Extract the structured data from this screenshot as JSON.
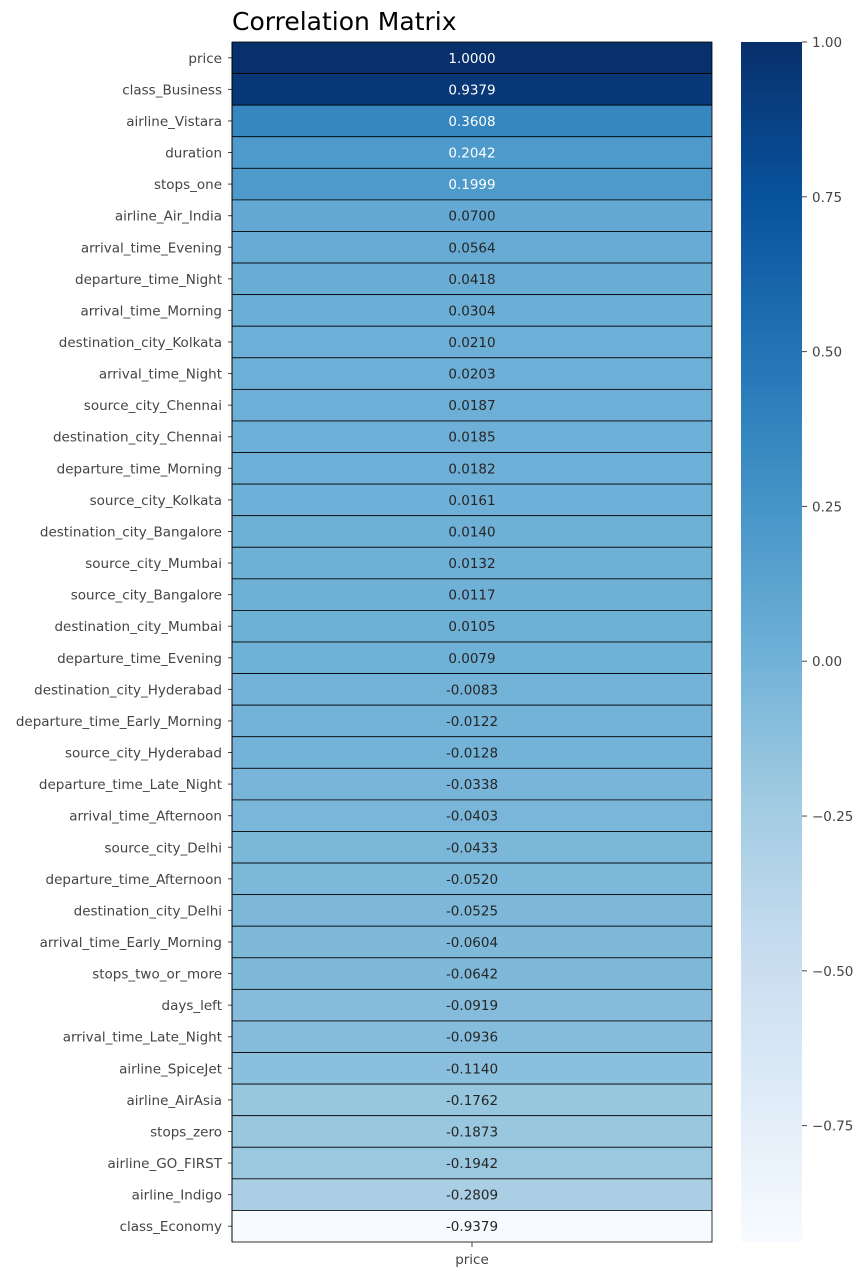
{
  "chart_data": {
    "type": "heatmap",
    "title": "Correlation Matrix",
    "x_categories": [
      "price"
    ],
    "y_categories": [
      "price",
      "class_Business",
      "airline_Vistara",
      "duration",
      "stops_one",
      "airline_Air_India",
      "arrival_time_Evening",
      "departure_time_Night",
      "arrival_time_Morning",
      "destination_city_Kolkata",
      "arrival_time_Night",
      "source_city_Chennai",
      "destination_city_Chennai",
      "departure_time_Morning",
      "source_city_Kolkata",
      "destination_city_Bangalore",
      "source_city_Mumbai",
      "source_city_Bangalore",
      "destination_city_Mumbai",
      "departure_time_Evening",
      "destination_city_Hyderabad",
      "departure_time_Early_Morning",
      "source_city_Hyderabad",
      "departure_time_Late_Night",
      "arrival_time_Afternoon",
      "source_city_Delhi",
      "departure_time_Afternoon",
      "destination_city_Delhi",
      "arrival_time_Early_Morning",
      "stops_two_or_more",
      "days_left",
      "arrival_time_Late_Night",
      "airline_SpiceJet",
      "airline_AirAsia",
      "stops_zero",
      "airline_GO_FIRST",
      "airline_Indigo",
      "class_Economy"
    ],
    "values": [
      1.0,
      0.9379,
      0.3608,
      0.2042,
      0.1999,
      0.07,
      0.0564,
      0.0418,
      0.0304,
      0.021,
      0.0203,
      0.0187,
      0.0185,
      0.0182,
      0.0161,
      0.014,
      0.0132,
      0.0117,
      0.0105,
      0.0079,
      -0.0083,
      -0.0122,
      -0.0128,
      -0.0338,
      -0.0403,
      -0.0433,
      -0.052,
      -0.0525,
      -0.0604,
      -0.0642,
      -0.0919,
      -0.0936,
      -0.114,
      -0.1762,
      -0.1873,
      -0.1942,
      -0.2809,
      -0.9379
    ],
    "value_labels": [
      "1.0000",
      "0.9379",
      "0.3608",
      "0.2042",
      "0.1999",
      "0.0700",
      "0.0564",
      "0.0418",
      "0.0304",
      "0.0210",
      "0.0203",
      "0.0187",
      "0.0185",
      "0.0182",
      "0.0161",
      "0.0140",
      "0.0132",
      "0.0117",
      "0.0105",
      "0.0079",
      "-0.0083",
      "-0.0122",
      "-0.0128",
      "-0.0338",
      "-0.0403",
      "-0.0433",
      "-0.0520",
      "-0.0525",
      "-0.0604",
      "-0.0642",
      "-0.0919",
      "-0.0936",
      "-0.1140",
      "-0.1762",
      "-0.1873",
      "-0.1942",
      "-0.2809",
      "-0.9379"
    ],
    "colormap": "Blues",
    "colorbar": {
      "range": [
        -0.9379,
        1.0
      ],
      "ticks": [
        1.0,
        0.75,
        0.5,
        0.25,
        0.0,
        -0.25,
        -0.5,
        -0.75
      ],
      "tick_labels": [
        "1.00",
        "0.75",
        "0.50",
        "0.25",
        "0.00",
        "−0.25",
        "−0.50",
        "−0.75"
      ]
    }
  }
}
